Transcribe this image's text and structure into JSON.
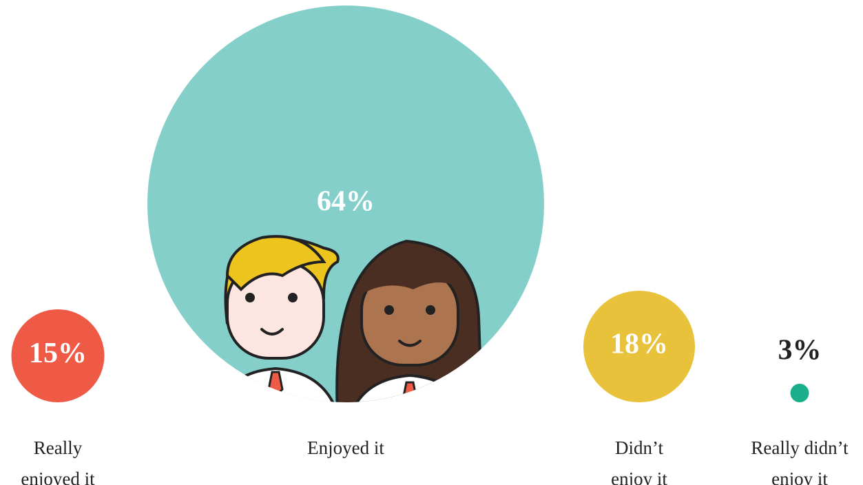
{
  "chart_data": {
    "type": "bubble",
    "categories": [
      "Really enjoyed it",
      "Enjoyed it",
      "Didn’t enjoy it",
      "Really didn’t enjoy it"
    ],
    "values": [
      15,
      64,
      18,
      3
    ],
    "value_labels": [
      "15%",
      "64%",
      "18%",
      "3%"
    ],
    "colors": [
      "#ee5a45",
      "#84cfca",
      "#e8c23a",
      "#1bae8a"
    ]
  }
}
